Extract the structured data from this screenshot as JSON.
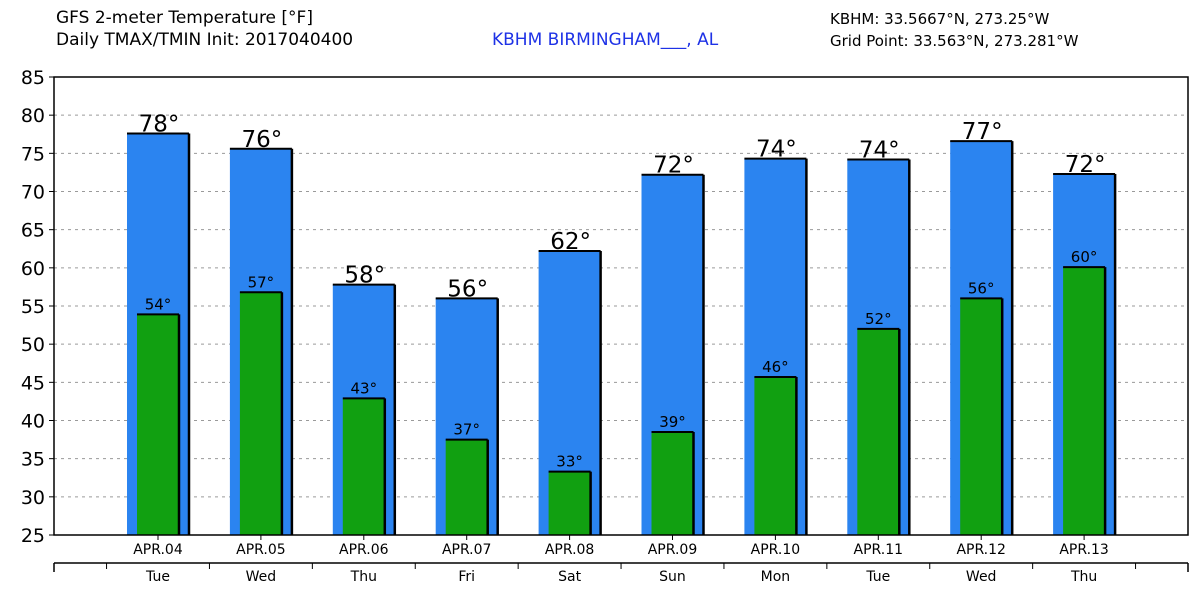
{
  "header": {
    "title_line1": "GFS 2-meter Temperature [°F]",
    "title_line2": "Daily TMAX/TMIN Init: 2017040400",
    "station": "KBHM BIRMINGHAM___, AL",
    "station_coords": "KBHM: 33.5667°N, 273.25°W",
    "grid_point": "Grid Point: 33.563°N, 273.281°W"
  },
  "colors": {
    "tmax": "#2b84f0",
    "tmin": "#11a011",
    "station": "#1e32e6",
    "grid": "#9a9a9a",
    "axis": "#000000"
  },
  "chart_data": {
    "type": "bar",
    "title": "GFS 2-meter Temperature [°F]",
    "xlabel": "",
    "ylabel": "",
    "ylim": [
      25,
      85
    ],
    "yticks": [
      25,
      30,
      35,
      40,
      45,
      50,
      55,
      60,
      65,
      70,
      75,
      80,
      85
    ],
    "grid": true,
    "categories": [
      "APR.04",
      "APR.05",
      "APR.06",
      "APR.07",
      "APR.08",
      "APR.09",
      "APR.10",
      "APR.11",
      "APR.12",
      "APR.13"
    ],
    "weekdays": [
      "Tue",
      "Wed",
      "Thu",
      "Fri",
      "Sat",
      "Sun",
      "Mon",
      "Tue",
      "Wed",
      "Thu"
    ],
    "series": [
      {
        "name": "TMAX",
        "values": [
          77.6,
          75.6,
          57.8,
          56.0,
          62.2,
          72.2,
          74.3,
          74.2,
          76.6,
          72.3
        ],
        "labels": [
          "78°",
          "76°",
          "58°",
          "56°",
          "62°",
          "72°",
          "74°",
          "74°",
          "77°",
          "72°"
        ]
      },
      {
        "name": "TMIN",
        "values": [
          53.9,
          56.8,
          42.9,
          37.5,
          33.3,
          38.5,
          45.7,
          52.0,
          56.0,
          60.1
        ],
        "labels": [
          "54°",
          "57°",
          "43°",
          "37°",
          "33°",
          "39°",
          "46°",
          "52°",
          "56°",
          "60°"
        ]
      }
    ]
  }
}
